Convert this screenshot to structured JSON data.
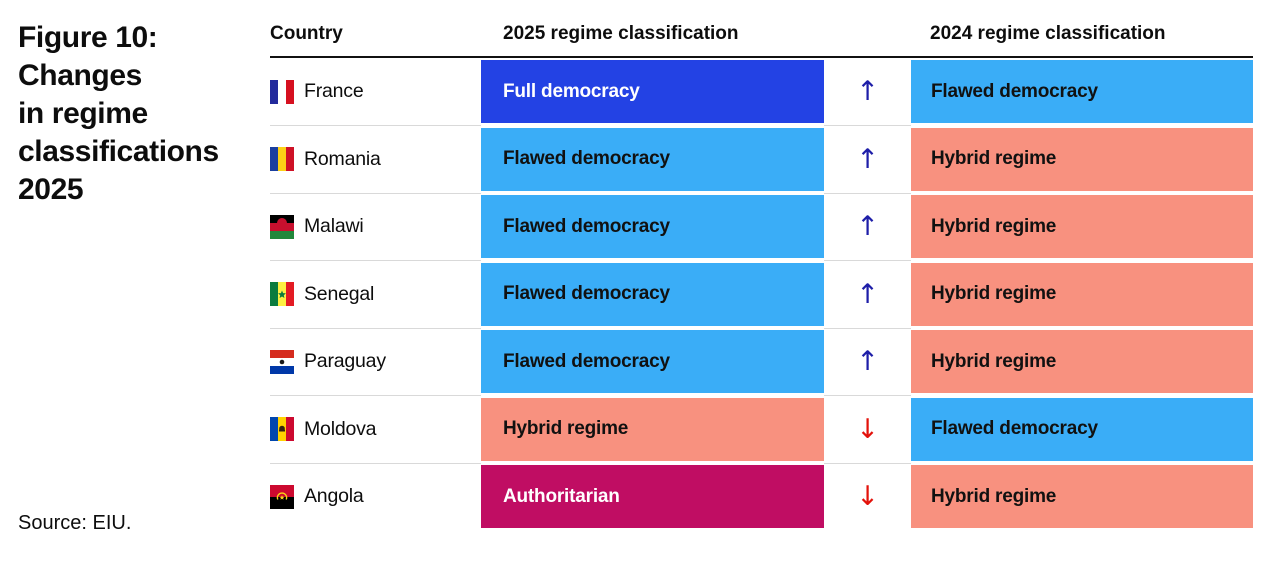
{
  "figure": {
    "title_lines": [
      "Figure 10:",
      "Changes",
      "in regime",
      "classifications",
      "2025"
    ],
    "title_full": "Figure 10: Changes in regime classifications 2025",
    "source": "Source: EIU."
  },
  "table": {
    "columns": {
      "country": "Country",
      "y2025": "2025 regime classification",
      "y2024": "2024 regime classification"
    },
    "rows": [
      {
        "country": "France",
        "flag": "france",
        "c2025": "Full democracy",
        "change": "up",
        "c2024": "Flawed democracy"
      },
      {
        "country": "Romania",
        "flag": "romania",
        "c2025": "Flawed democracy",
        "change": "up",
        "c2024": "Hybrid regime"
      },
      {
        "country": "Malawi",
        "flag": "malawi",
        "c2025": "Flawed democracy",
        "change": "up",
        "c2024": "Hybrid regime"
      },
      {
        "country": "Senegal",
        "flag": "senegal",
        "c2025": "Flawed democracy",
        "change": "up",
        "c2024": "Hybrid regime"
      },
      {
        "country": "Paraguay",
        "flag": "paraguay",
        "c2025": "Flawed democracy",
        "change": "up",
        "c2024": "Hybrid regime"
      },
      {
        "country": "Moldova",
        "flag": "moldova",
        "c2025": "Hybrid regime",
        "change": "down",
        "c2024": "Flawed democracy"
      },
      {
        "country": "Angola",
        "flag": "angola",
        "c2025": "Authoritarian",
        "change": "down",
        "c2024": "Hybrid regime"
      }
    ]
  },
  "classification_colors": {
    "Full democracy": {
      "bg": "#2342e4",
      "fg": "#ffffff"
    },
    "Flawed democracy": {
      "bg": "#3aadf7",
      "fg": "#111111"
    },
    "Hybrid regime": {
      "bg": "#f8917f",
      "fg": "#111111"
    },
    "Authoritarian": {
      "bg": "#c00d63",
      "fg": "#ffffff"
    }
  },
  "icons": {
    "up-arrow-icon": "↑",
    "down-arrow-icon": "↓"
  },
  "arrow_colors": {
    "up": "#1e1ea8",
    "down": "#e3120b"
  },
  "chart_data": {
    "type": "table",
    "title": "Figure 10: Changes in regime classifications 2025",
    "columns": [
      "Country",
      "2025 regime classification",
      "Change direction",
      "2024 regime classification"
    ],
    "rows": [
      [
        "France",
        "Full democracy",
        "up",
        "Flawed democracy"
      ],
      [
        "Romania",
        "Flawed democracy",
        "up",
        "Hybrid regime"
      ],
      [
        "Malawi",
        "Flawed democracy",
        "up",
        "Hybrid regime"
      ],
      [
        "Senegal",
        "Flawed democracy",
        "up",
        "Hybrid regime"
      ],
      [
        "Paraguay",
        "Flawed democracy",
        "up",
        "Hybrid regime"
      ],
      [
        "Moldova",
        "Hybrid regime",
        "down",
        "Flawed democracy"
      ],
      [
        "Angola",
        "Authoritarian",
        "down",
        "Hybrid regime"
      ]
    ],
    "source": "Source: EIU."
  }
}
